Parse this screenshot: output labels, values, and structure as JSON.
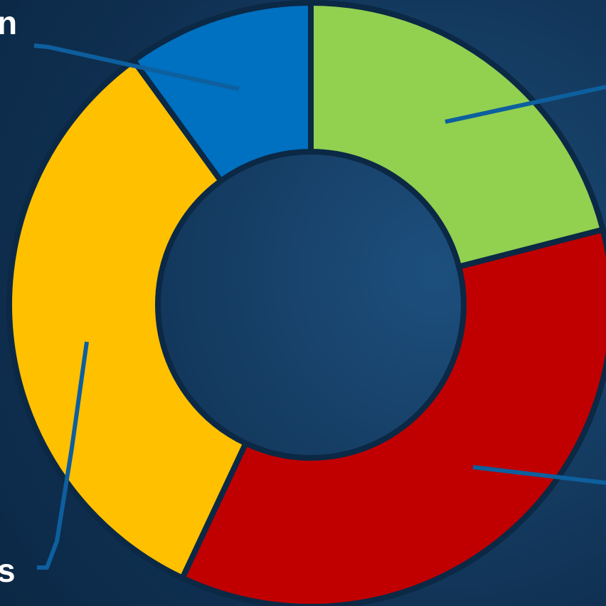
{
  "chart_data": {
    "type": "pie",
    "donut": true,
    "slices": [
      {
        "label": "",
        "value": 21,
        "color": "#92d050"
      },
      {
        "label": "",
        "value": 36,
        "color": "#c00000"
      },
      {
        "label": "",
        "value": 33,
        "color": "#ffc000"
      },
      {
        "label": "",
        "value": 10,
        "color": "#0070c0"
      }
    ],
    "visible_label_fragments": [
      "n",
      "s"
    ],
    "leader_line_color": "#0d5f9e",
    "background_color": "#0f2f50",
    "legend": "none"
  }
}
